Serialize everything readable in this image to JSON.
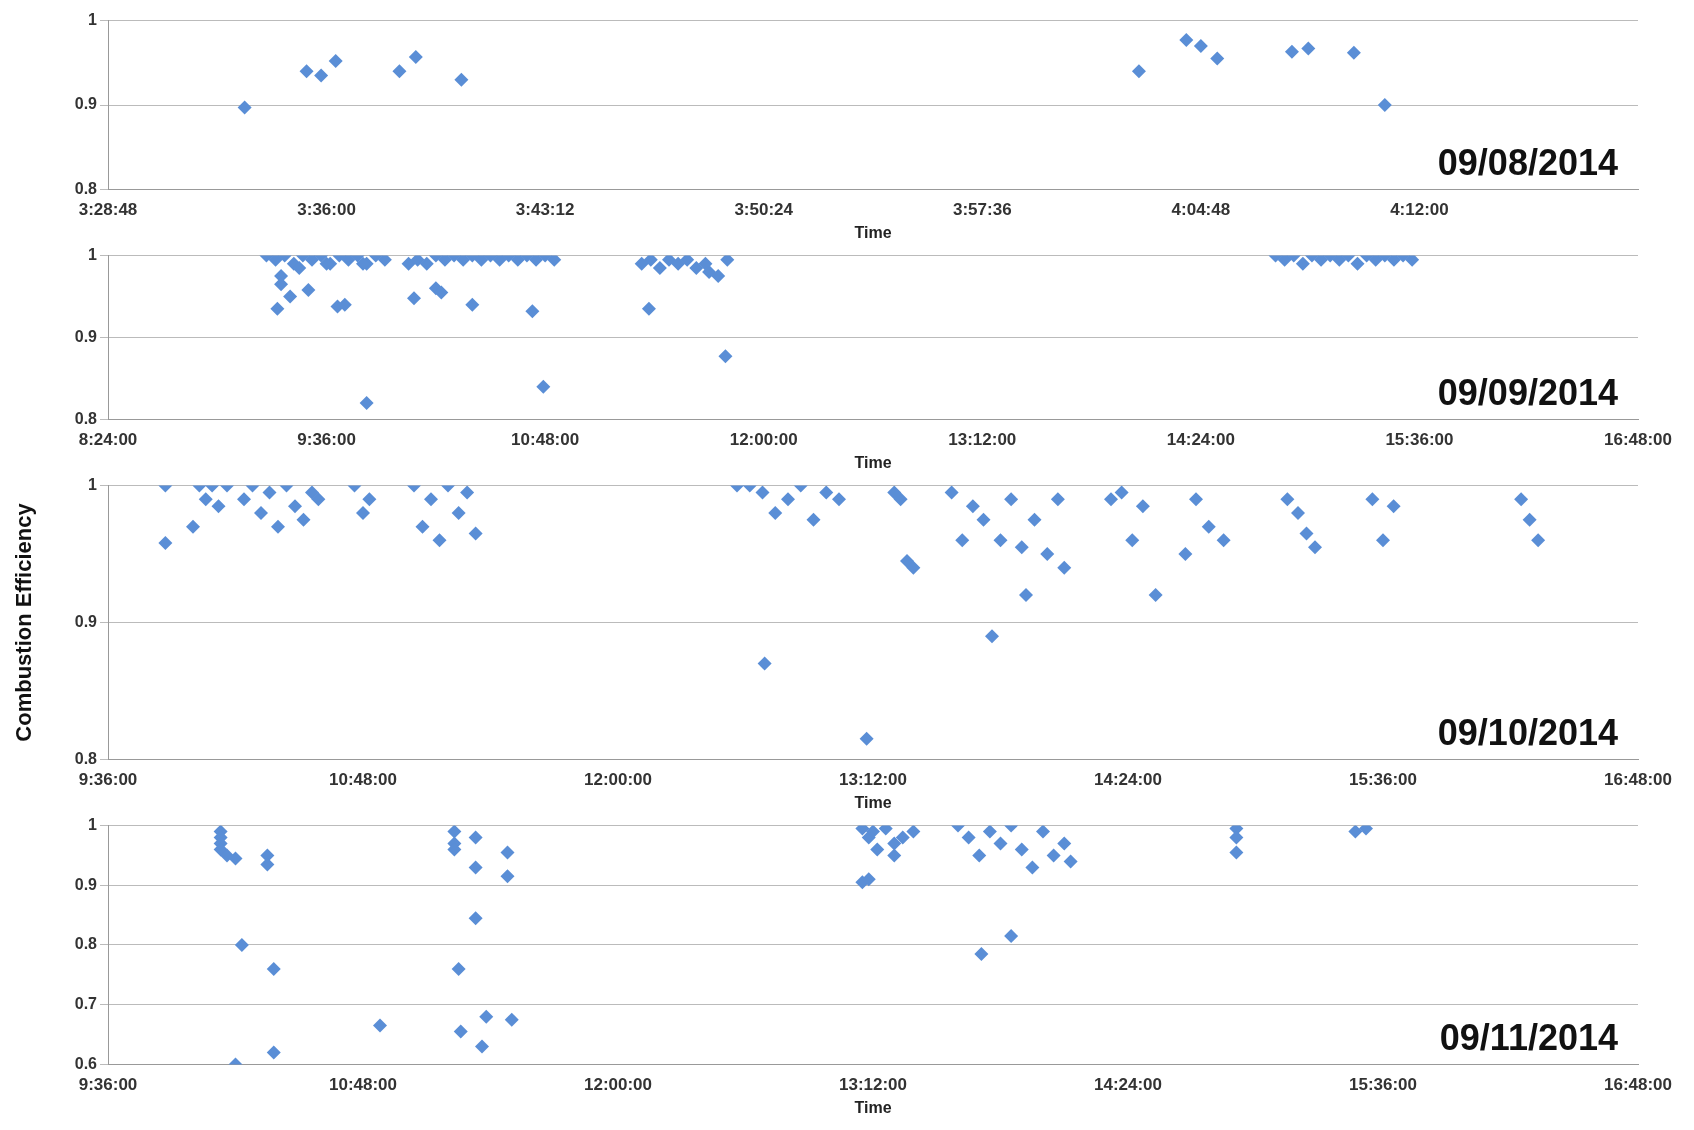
{
  "chart_data": [
    {
      "type": "scatter",
      "xlabel": "Time",
      "annotations": [
        "09/08/2014"
      ],
      "color": "#5a8ed6",
      "marker": "diamond",
      "grid": "y",
      "legend": false,
      "xlim": [
        3.48,
        4.32
      ],
      "xticks": [
        {
          "value": 3.48,
          "label": "3:28:48"
        },
        {
          "value": 3.6,
          "label": "3:36:00"
        },
        {
          "value": 3.72,
          "label": "3:43:12"
        },
        {
          "value": 3.84,
          "label": "3:50:24"
        },
        {
          "value": 3.96,
          "label": "3:57:36"
        },
        {
          "value": 4.08,
          "label": "4:04:48"
        },
        {
          "value": 4.2,
          "label": "4:12:00"
        }
      ],
      "ylim": [
        0.8,
        1
      ],
      "yticks": [
        0.8,
        0.9,
        1
      ],
      "x": [
        3.555,
        3.589,
        3.597,
        3.605,
        3.64,
        3.649,
        3.674,
        4.046,
        4.072,
        4.08,
        4.089,
        4.13,
        4.139,
        4.164,
        4.181
      ],
      "values": [
        0.897,
        0.94,
        0.935,
        0.952,
        0.94,
        0.957,
        0.93,
        0.94,
        0.977,
        0.97,
        0.955,
        0.963,
        0.967,
        0.962,
        0.9
      ]
    },
    {
      "type": "scatter",
      "xlabel": "Time",
      "annotations": [
        "09/09/2014"
      ],
      "color": "#5a8ed6",
      "marker": "diamond",
      "grid": "y",
      "legend": false,
      "xlim": [
        8.4,
        16.8
      ],
      "xticks": [
        {
          "value": 8.4,
          "label": "8:24:00"
        },
        {
          "value": 9.6,
          "label": "9:36:00"
        },
        {
          "value": 10.8,
          "label": "10:48:00"
        },
        {
          "value": 12,
          "label": "12:00:00"
        },
        {
          "value": 13.2,
          "label": "13:12:00"
        },
        {
          "value": 14.4,
          "label": "14:24:00"
        },
        {
          "value": 15.6,
          "label": "15:36:00"
        },
        {
          "value": 16.8,
          "label": "16:48:00"
        }
      ],
      "ylim": [
        0.8,
        1
      ],
      "yticks": [
        0.8,
        0.9,
        1
      ],
      "x": [
        9.27,
        9.32,
        9.37,
        9.42,
        9.47,
        9.52,
        9.57,
        9.62,
        9.67,
        9.72,
        9.77,
        9.82,
        9.87,
        9.92,
        9.35,
        9.45,
        9.6,
        9.8,
        10.05,
        10.1,
        10.15,
        10.2,
        10.25,
        10.3,
        10.35,
        10.4,
        10.45,
        10.5,
        10.55,
        10.6,
        10.65,
        10.7,
        10.75,
        10.8,
        10.85,
        11.33,
        11.38,
        11.43,
        11.48,
        11.53,
        11.58,
        11.63,
        11.68,
        11.7,
        11.75,
        11.8,
        14.81,
        14.86,
        14.91,
        14.96,
        15.01,
        15.06,
        15.11,
        15.16,
        15.21,
        15.26,
        15.31,
        15.36,
        15.41,
        15.46,
        15.51,
        15.56,
        9.33,
        9.35,
        9.4,
        9.5,
        9.66,
        9.7,
        9.82,
        10.08,
        10.2,
        10.23,
        10.4,
        10.73,
        10.79,
        11.37,
        11.79
      ],
      "values": [
        1,
        0.995,
        1,
        0.99,
        1,
        0.995,
        1,
        0.99,
        1,
        0.995,
        1,
        0.99,
        1,
        0.995,
        0.975,
        0.985,
        0.99,
        0.99,
        0.99,
        0.995,
        0.99,
        1,
        0.995,
        1,
        0.995,
        1,
        0.995,
        1,
        0.995,
        1,
        0.995,
        1,
        0.995,
        1,
        0.995,
        0.99,
        0.995,
        0.985,
        0.995,
        0.99,
        0.995,
        0.985,
        0.99,
        0.98,
        0.975,
        0.995,
        1,
        0.995,
        1,
        0.99,
        1,
        0.995,
        1,
        0.995,
        1,
        0.99,
        1,
        0.995,
        1,
        0.995,
        1,
        0.995,
        0.935,
        0.965,
        0.95,
        0.958,
        0.938,
        0.94,
        0.82,
        0.948,
        0.96,
        0.955,
        0.94,
        0.932,
        0.84,
        0.935,
        0.877
      ]
    },
    {
      "type": "scatter",
      "ylabel": "Combustion Efficiency",
      "xlabel": "Time",
      "annotations": [
        "09/10/2014"
      ],
      "color": "#5a8ed6",
      "marker": "diamond",
      "grid": "y",
      "legend": false,
      "xlim": [
        9.6,
        16.8
      ],
      "xticks": [
        {
          "value": 9.6,
          "label": "9:36:00"
        },
        {
          "value": 10.8,
          "label": "10:48:00"
        },
        {
          "value": 12,
          "label": "12:00:00"
        },
        {
          "value": 13.2,
          "label": "13:12:00"
        },
        {
          "value": 14.4,
          "label": "14:24:00"
        },
        {
          "value": 15.6,
          "label": "15:36:00"
        },
        {
          "value": 16.8,
          "label": "16:48:00"
        }
      ],
      "ylim": [
        0.8,
        1
      ],
      "yticks": [
        0.8,
        0.9,
        1
      ],
      "x": [
        9.87,
        9.87,
        10.0,
        10.03,
        10.06,
        10.09,
        10.12,
        10.16,
        10.24,
        10.28,
        10.32,
        10.36,
        10.4,
        10.44,
        10.48,
        10.52,
        10.56,
        10.59,
        10.76,
        10.8,
        10.83,
        11.04,
        11.08,
        11.12,
        11.16,
        11.2,
        11.25,
        11.29,
        11.33,
        12.56,
        12.62,
        12.68,
        12.74,
        12.8,
        12.86,
        12.92,
        12.98,
        13.04,
        12.69,
        13.17,
        13.3,
        13.33,
        13.36,
        13.39,
        13.57,
        13.62,
        13.67,
        13.72,
        13.76,
        13.8,
        13.85,
        13.9,
        13.92,
        13.96,
        14.02,
        14.07,
        14.1,
        14.32,
        14.37,
        14.42,
        14.47,
        14.53,
        14.67,
        14.72,
        14.78,
        14.85,
        15.15,
        15.2,
        15.24,
        15.28,
        15.55,
        15.6,
        15.65,
        16.25,
        16.29,
        16.33
      ],
      "values": [
        1,
        0.958,
        0.97,
        1,
        0.99,
        1,
        0.985,
        1,
        0.99,
        1,
        0.98,
        0.995,
        0.97,
        1,
        0.985,
        0.975,
        0.995,
        0.99,
        1,
        0.98,
        0.99,
        1,
        0.97,
        0.99,
        0.96,
        1,
        0.98,
        0.995,
        0.965,
        1,
        1,
        0.995,
        0.98,
        0.99,
        1,
        0.975,
        0.995,
        0.99,
        0.87,
        0.815,
        0.995,
        0.99,
        0.945,
        0.94,
        0.995,
        0.96,
        0.985,
        0.975,
        0.89,
        0.96,
        0.99,
        0.955,
        0.92,
        0.975,
        0.95,
        0.99,
        0.94,
        0.99,
        0.995,
        0.96,
        0.985,
        0.92,
        0.95,
        0.99,
        0.97,
        0.96,
        0.99,
        0.98,
        0.965,
        0.955,
        0.99,
        0.96,
        0.985,
        0.99,
        0.975,
        0.96
      ]
    },
    {
      "type": "scatter",
      "xlabel": "Time",
      "annotations": [
        "09/11/2014"
      ],
      "color": "#5a8ed6",
      "marker": "diamond",
      "grid": "y",
      "legend": false,
      "xlim": [
        9.6,
        16.8
      ],
      "xticks": [
        {
          "value": 9.6,
          "label": "9:36:00"
        },
        {
          "value": 10.8,
          "label": "10:48:00"
        },
        {
          "value": 12,
          "label": "12:00:00"
        },
        {
          "value": 13.2,
          "label": "13:12:00"
        },
        {
          "value": 14.4,
          "label": "14:24:00"
        },
        {
          "value": 15.6,
          "label": "15:36:00"
        },
        {
          "value": 16.8,
          "label": "16:48:00"
        }
      ],
      "ylim": [
        0.6,
        1
      ],
      "yticks": [
        0.6,
        0.7,
        0.8,
        0.9,
        1
      ],
      "x": [
        10.13,
        10.13,
        10.13,
        10.13,
        10.16,
        10.2,
        10.2,
        10.23,
        10.35,
        10.35,
        10.38,
        10.38,
        10.88,
        11.23,
        11.23,
        11.23,
        11.25,
        11.26,
        11.33,
        11.33,
        11.33,
        11.36,
        11.38,
        11.48,
        11.48,
        11.5,
        13.15,
        13.18,
        13.2,
        13.22,
        13.26,
        13.3,
        13.34,
        13.39,
        13.15,
        13.18,
        13.3,
        13.6,
        13.65,
        13.7,
        13.75,
        13.8,
        13.85,
        13.9,
        13.95,
        14.0,
        14.05,
        14.1,
        14.13,
        13.71,
        13.85,
        14.91,
        14.91,
        14.91,
        15.47,
        15.52
      ],
      "values": [
        0.99,
        0.98,
        0.97,
        0.96,
        0.95,
        0.945,
        0.6,
        0.8,
        0.95,
        0.935,
        0.76,
        0.62,
        0.665,
        0.99,
        0.97,
        0.96,
        0.76,
        0.655,
        0.98,
        0.93,
        0.845,
        0.63,
        0.68,
        0.955,
        0.915,
        0.675,
        0.995,
        0.98,
        0.99,
        0.96,
        0.995,
        0.95,
        0.98,
        0.99,
        0.905,
        0.91,
        0.97,
        1,
        0.98,
        0.95,
        0.99,
        0.97,
        1,
        0.96,
        0.93,
        0.99,
        0.95,
        0.97,
        0.94,
        0.785,
        0.815,
        0.995,
        0.98,
        0.955,
        0.99,
        0.995
      ]
    }
  ]
}
